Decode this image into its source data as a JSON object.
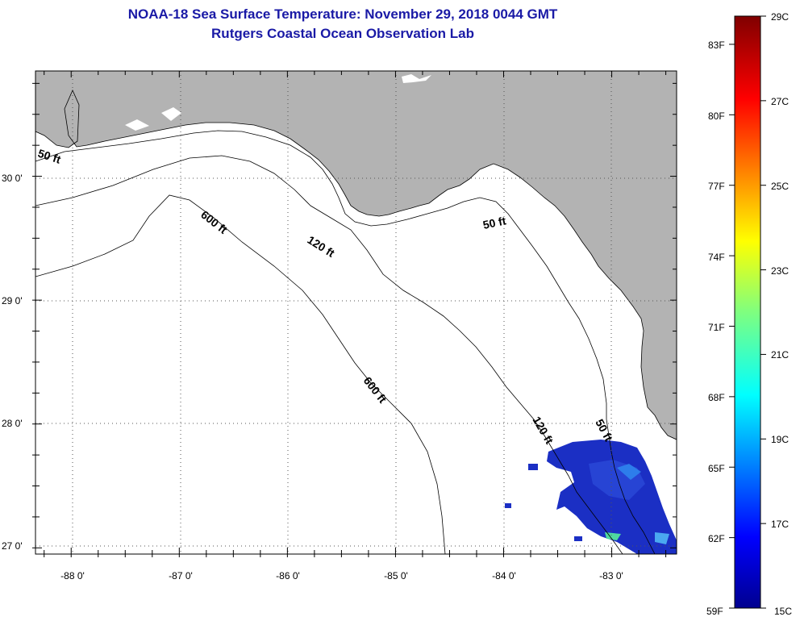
{
  "header": {
    "title": "NOAA-18 Sea Surface Temperature:  November 29, 2018 0044 GMT",
    "subtitle": "Rutgers Coastal Ocean Observation Lab"
  },
  "map": {
    "lon_range": [
      -88.33,
      -82.4
    ],
    "lat_range": [
      26.95,
      30.85
    ],
    "lon_ticks": [
      {
        "value": -88,
        "label": "-88 0'"
      },
      {
        "value": -87,
        "label": "-87 0'"
      },
      {
        "value": -86,
        "label": "-86 0'"
      },
      {
        "value": -85,
        "label": "-85 0'"
      },
      {
        "value": -84,
        "label": "-84 0'"
      },
      {
        "value": -83,
        "label": "-83 0'"
      }
    ],
    "lat_ticks": [
      {
        "value": 30,
        "label": "30 0'"
      },
      {
        "value": 29,
        "label": "29 0'"
      },
      {
        "value": 28,
        "label": "28 0'"
      },
      {
        "value": 27,
        "label": "27 0'"
      }
    ],
    "land_color": "#b3b3b3",
    "grid": true,
    "contour_labels": [
      "50 ft",
      "50 ft",
      "50 ft",
      "120 ft",
      "120 ft",
      "600 ft",
      "600 ft"
    ]
  },
  "colorbar": {
    "range_c": [
      15,
      29
    ],
    "celsius_labels": [
      {
        "value": 29,
        "label": "29C"
      },
      {
        "value": 27,
        "label": "27C"
      },
      {
        "value": 25,
        "label": "25C"
      },
      {
        "value": 23,
        "label": "23C"
      },
      {
        "value": 21,
        "label": "21C"
      },
      {
        "value": 19,
        "label": "19C"
      },
      {
        "value": 17,
        "label": "17C"
      },
      {
        "value": 15,
        "label": "15C"
      }
    ],
    "fahrenheit_labels": [
      {
        "value": 83,
        "label": "83F"
      },
      {
        "value": 80,
        "label": "80F"
      },
      {
        "value": 77,
        "label": "77F"
      },
      {
        "value": 74,
        "label": "74F"
      },
      {
        "value": 71,
        "label": "71F"
      },
      {
        "value": 68,
        "label": "68F"
      },
      {
        "value": 65,
        "label": "65F"
      },
      {
        "value": 62,
        "label": "62F"
      },
      {
        "value": 59,
        "label": "59F"
      }
    ]
  }
}
